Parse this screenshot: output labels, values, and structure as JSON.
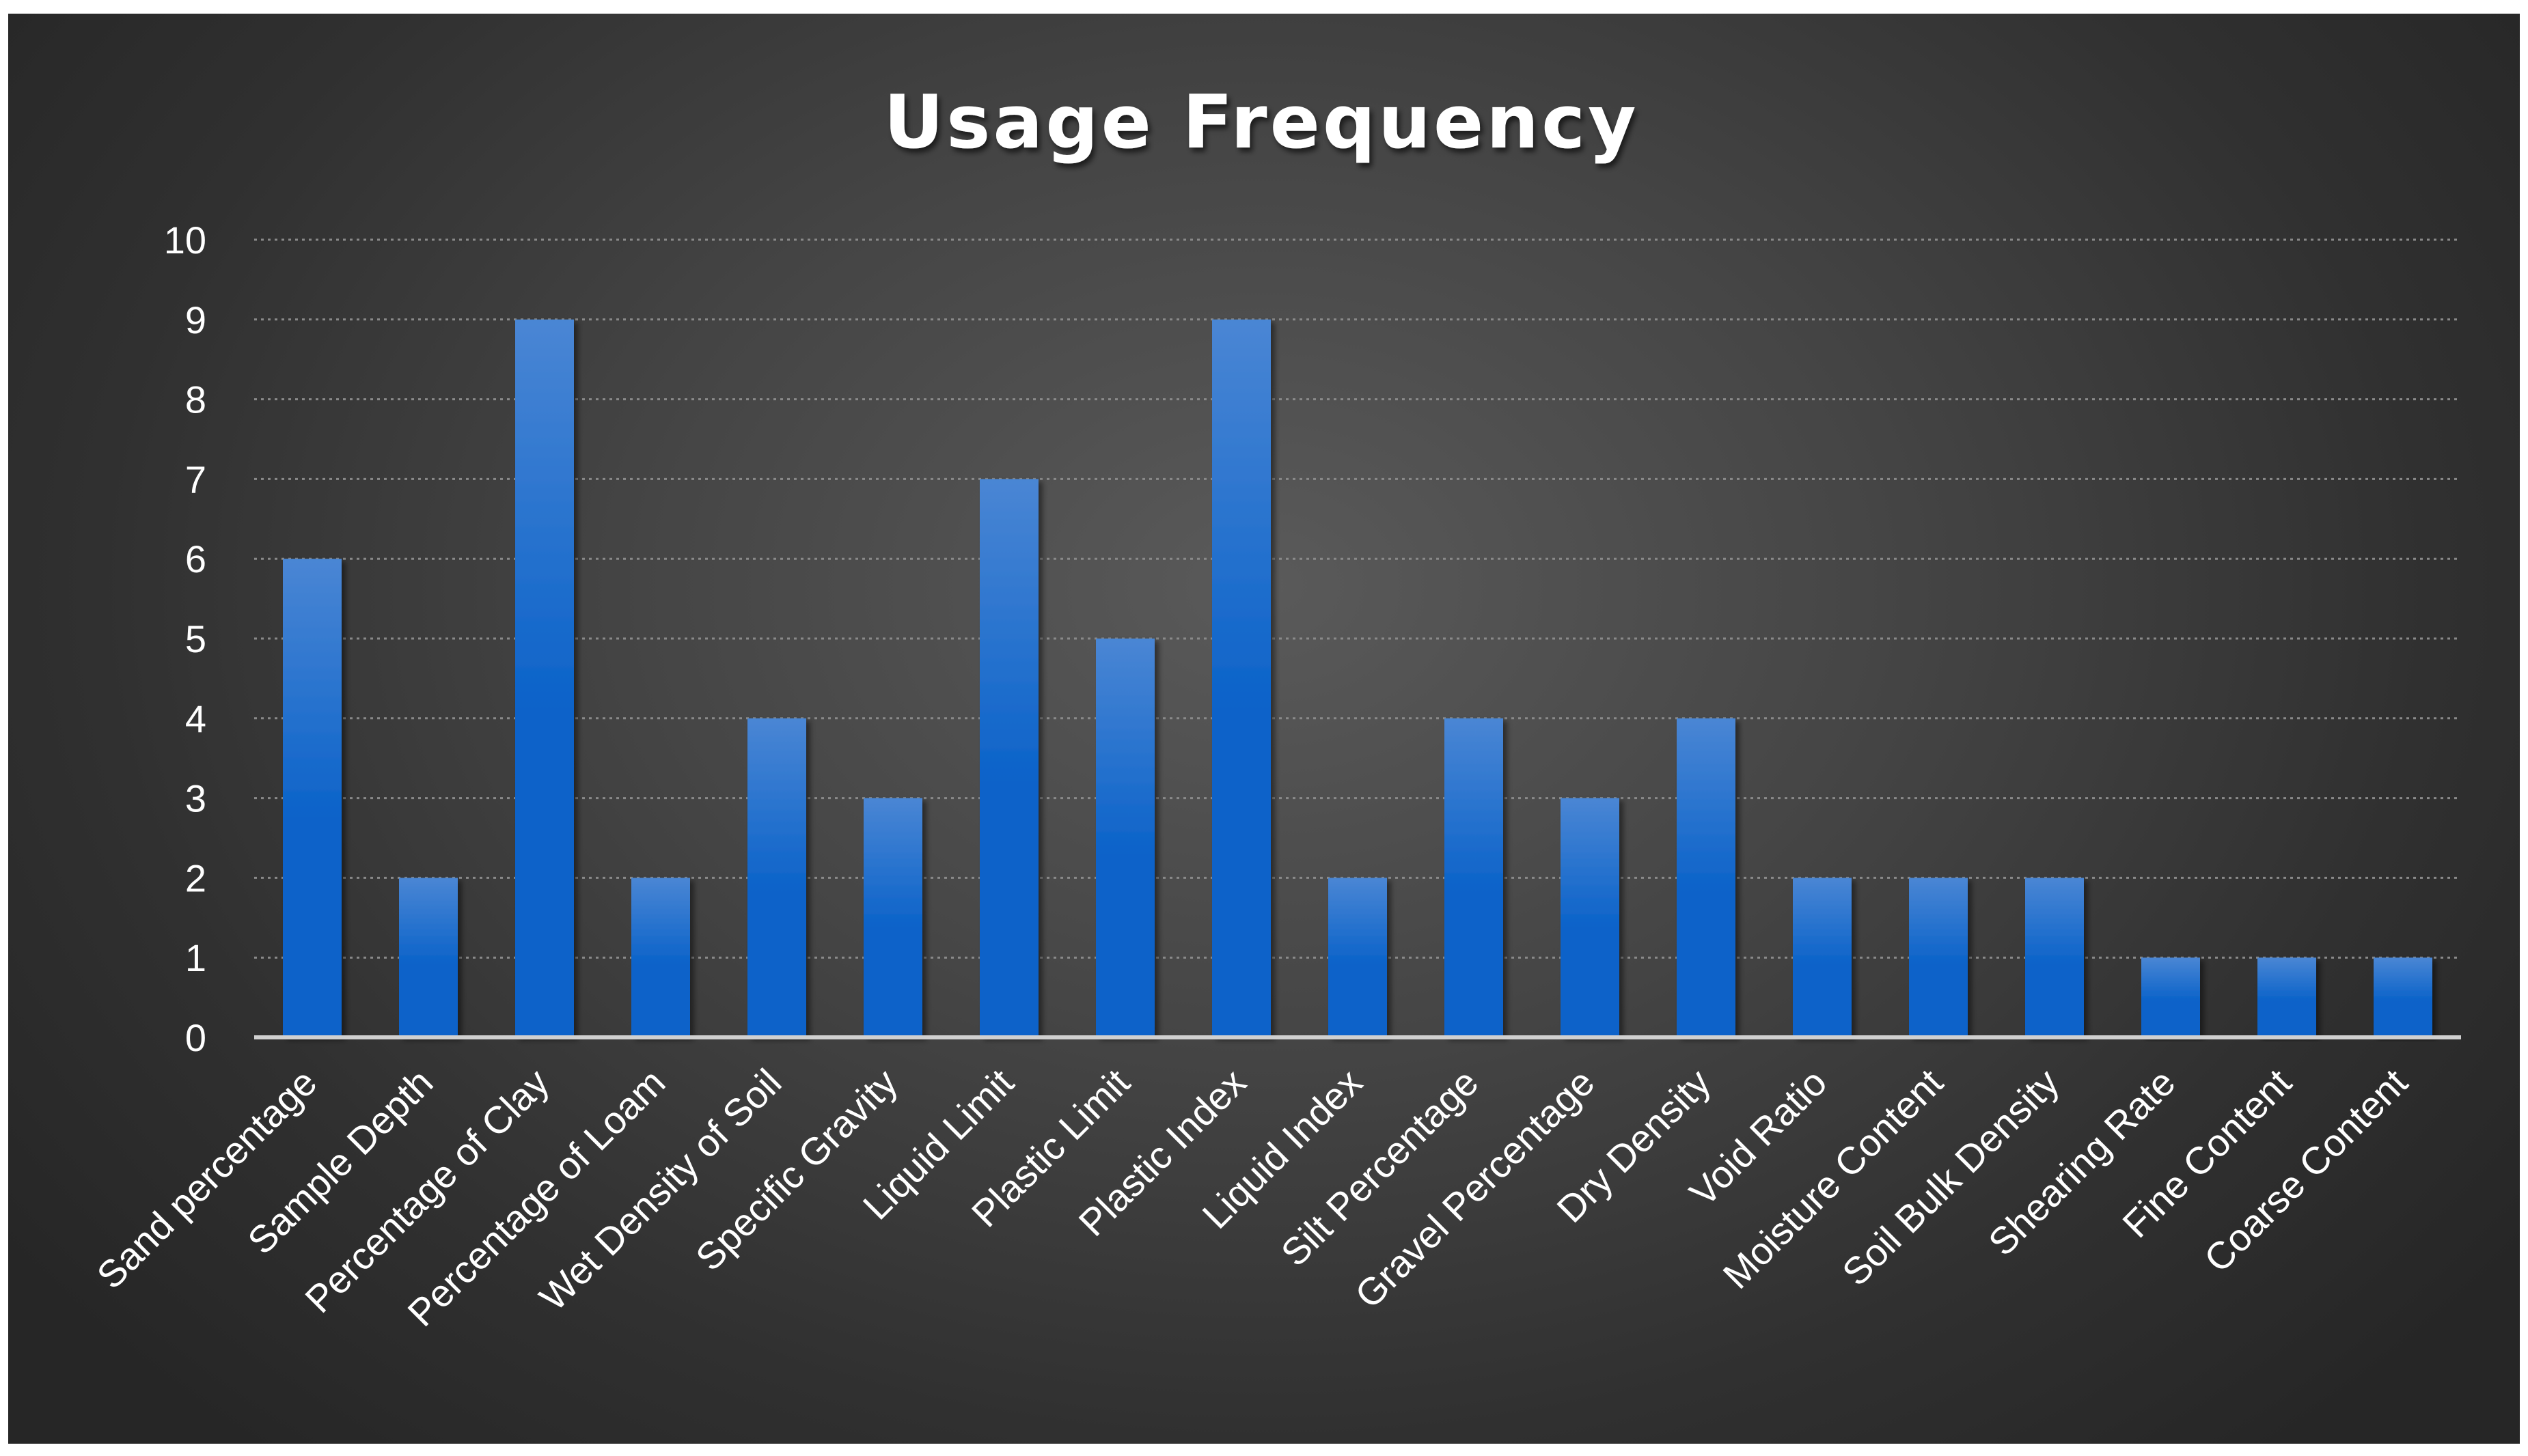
{
  "chart_data": {
    "type": "bar",
    "title": "Usage Frequency",
    "xlabel": "",
    "ylabel": "",
    "ylim": [
      0,
      10
    ],
    "yticks": [
      0,
      1,
      2,
      3,
      4,
      5,
      6,
      7,
      8,
      9,
      10
    ],
    "grid": true,
    "legend": "none",
    "categories": [
      "Sand percentage",
      "Sample Depth",
      "Percentage of Clay",
      "Percentage of Loam",
      "Wet Density of Soil",
      "Specific Gravity",
      "Liquid Limit",
      "Plastic Limit",
      "Plastic Index",
      "Liquid Index",
      "Silt Percentage",
      "Gravel Percentage",
      "Dry Density",
      "Void Ratio",
      "Moisture Content",
      "Soil Bulk Density",
      "Shearing Rate",
      "Fine Content",
      "Coarse Content"
    ],
    "values": [
      6,
      2,
      9,
      2,
      4,
      3,
      7,
      5,
      9,
      2,
      4,
      3,
      4,
      2,
      2,
      2,
      1,
      1,
      1
    ],
    "colors": {
      "bar_light": "#4a86d4",
      "bar_dark": "#0a62c9",
      "background": "#3c3c3c",
      "text": "#ffffff",
      "grid": "#8a8a8a"
    }
  }
}
